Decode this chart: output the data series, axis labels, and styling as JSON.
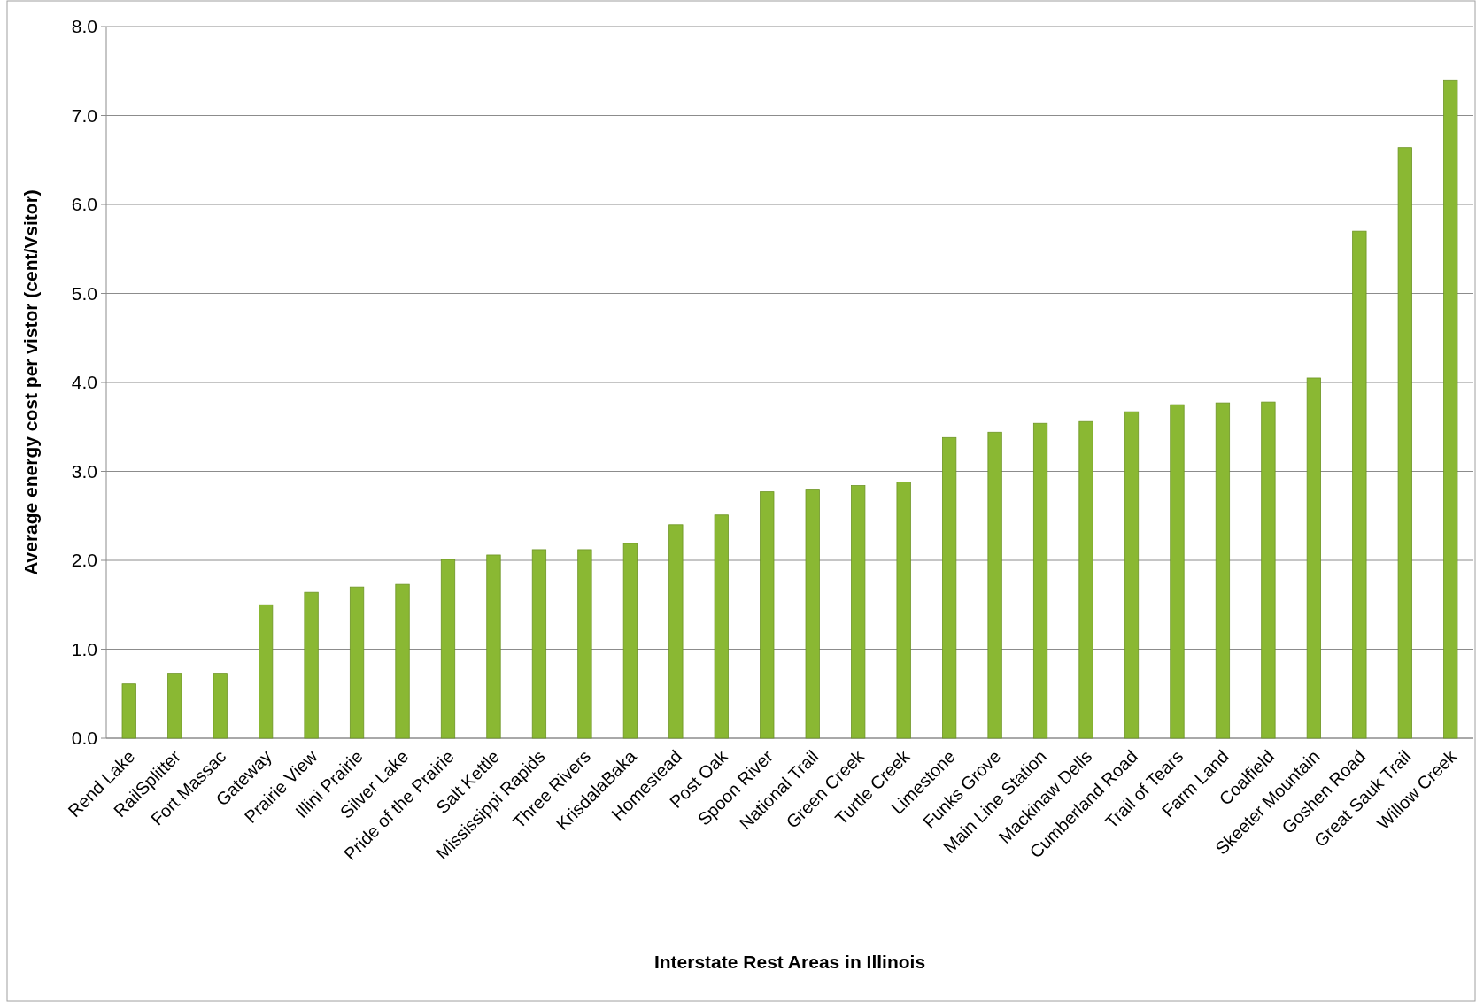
{
  "chart_data": {
    "type": "bar",
    "xlabel": "Interstate Rest Areas in Illinois",
    "ylabel": "Average energy cost per vistor (cent/Vsitor)",
    "categories": [
      "Rend Lake",
      "RailSplitter",
      "Fort Massac",
      "Gateway",
      "Prairie View",
      "Illini Prairie",
      "Silver Lake",
      "Pride of the Prairie",
      "Salt Kettle",
      "Mississippi Rapids",
      "Three Rivers",
      "KrisdalaBaka",
      "Homestead",
      "Post Oak",
      "Spoon River",
      "National Trail",
      "Green Creek",
      "Turtle Creek",
      "Limestone",
      "Funks Grove",
      "Main Line Station",
      "Mackinaw Dells",
      "Cumberland Road",
      "Trail of Tears",
      "Farm Land",
      "Coalfield",
      "Skeeter Mountain",
      "Goshen Road",
      "Great Sauk Trail",
      "Willow Creek"
    ],
    "values": [
      0.61,
      0.73,
      0.73,
      1.5,
      1.64,
      1.7,
      1.73,
      2.01,
      2.06,
      2.12,
      2.12,
      2.19,
      2.4,
      2.51,
      2.77,
      2.79,
      2.84,
      2.88,
      3.38,
      3.44,
      3.54,
      3.56,
      3.67,
      3.75,
      3.77,
      3.78,
      4.05,
      5.7,
      6.64,
      7.4
    ],
    "color": "#8ab833",
    "ylim": [
      0,
      8
    ],
    "yticks": [
      {
        "value": 0,
        "label": "0.0"
      },
      {
        "value": 1,
        "label": "1.0"
      },
      {
        "value": 2,
        "label": "2.0"
      },
      {
        "value": 3,
        "label": "3.0"
      },
      {
        "value": 4,
        "label": "4.0"
      },
      {
        "value": 5,
        "label": "5.0"
      },
      {
        "value": 6,
        "label": "6.0"
      },
      {
        "value": 7,
        "label": "7.0"
      },
      {
        "value": 8,
        "label": "8.0"
      }
    ],
    "grid": "y"
  }
}
